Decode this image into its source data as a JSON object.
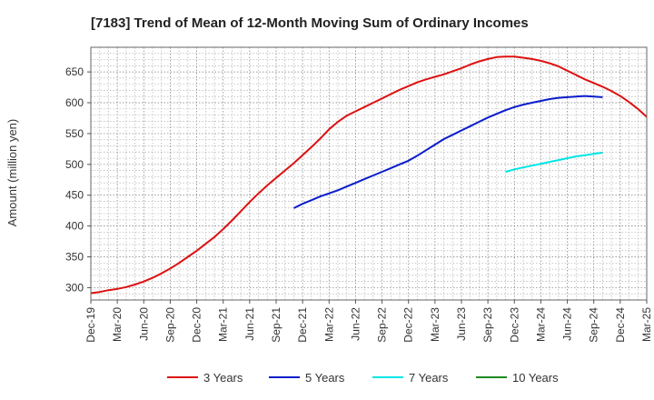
{
  "chart_data": {
    "type": "line",
    "title": "[7183]  Trend of Mean of 12-Month Moving Sum of Ordinary Incomes",
    "xlabel": "",
    "ylabel": "Amount (million yen)",
    "ylim": [
      280,
      690
    ],
    "yticks": [
      300,
      350,
      400,
      450,
      500,
      550,
      600,
      650
    ],
    "x_start": "2019-12",
    "x_end": "2025-03",
    "xtick_labels": [
      "Dec-19",
      "Mar-20",
      "Jun-20",
      "Sep-20",
      "Dec-20",
      "Mar-21",
      "Jun-21",
      "Sep-21",
      "Dec-21",
      "Mar-22",
      "Jun-22",
      "Sep-22",
      "Dec-22",
      "Mar-23",
      "Jun-23",
      "Sep-23",
      "Dec-23",
      "Mar-24",
      "Jun-24",
      "Sep-24",
      "Dec-24",
      "Mar-25"
    ],
    "grid": true,
    "legend_position": "bottom",
    "series": [
      {
        "name": "3 Years",
        "color": "#dd1111",
        "start": "2019-12",
        "values": [
          291,
          293,
          296,
          298,
          301,
          305,
          310,
          316,
          323,
          331,
          340,
          350,
          360,
          371,
          382,
          395,
          409,
          424,
          439,
          453,
          466,
          478,
          490,
          502,
          515,
          528,
          542,
          557,
          569,
          579,
          586,
          593,
          600,
          607,
          614,
          621,
          627,
          633,
          638,
          642,
          646,
          651,
          656,
          662,
          667,
          671,
          674,
          675,
          675,
          673,
          671,
          668,
          664,
          659,
          652,
          645,
          638,
          632,
          626,
          619,
          611,
          601,
          590,
          577
        ]
      },
      {
        "name": "5 Years",
        "color": "#0a1ccc",
        "start": "2021-11",
        "values": [
          429,
          436,
          442,
          448,
          453,
          458,
          464,
          470,
          476,
          482,
          488,
          494,
          500,
          506,
          514,
          523,
          532,
          541,
          548,
          555,
          562,
          569,
          576,
          582,
          588,
          593,
          597,
          600,
          603,
          606,
          608,
          609,
          610,
          611,
          610,
          609
        ]
      },
      {
        "name": "7 Years",
        "color": "#00e5e5",
        "start": "2023-11",
        "values": [
          488,
          492,
          495,
          498,
          501,
          504,
          507,
          510,
          513,
          515,
          517,
          519
        ]
      },
      {
        "name": "10 Years",
        "color": "#1f8a1f",
        "start": "2024-12",
        "values": []
      }
    ]
  }
}
